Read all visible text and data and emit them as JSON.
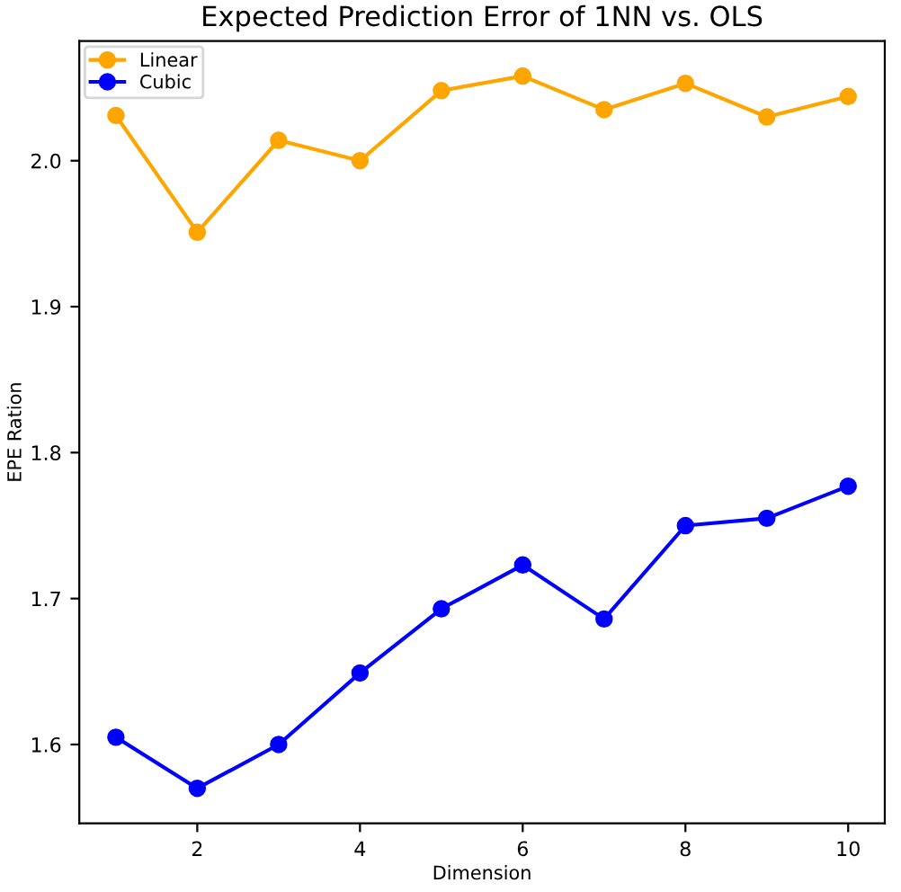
{
  "chart_data": {
    "type": "line",
    "title": "Expected Prediction Error of 1NN vs. OLS",
    "xlabel": "Dimension",
    "ylabel": "EPE Ration",
    "x": [
      1,
      2,
      3,
      4,
      5,
      6,
      7,
      8,
      9,
      10
    ],
    "series": [
      {
        "name": "Linear",
        "color": "#ffa500",
        "values": [
          2.031,
          1.951,
          2.014,
          2.0,
          2.048,
          2.058,
          2.035,
          2.053,
          2.03,
          2.044
        ]
      },
      {
        "name": "Cubic",
        "color": "#0000ff",
        "values": [
          1.605,
          1.57,
          1.6,
          1.649,
          1.693,
          1.723,
          1.686,
          1.75,
          1.755,
          1.777
        ]
      }
    ],
    "xlim": [
      0.55,
      10.45
    ],
    "ylim": [
      1.546,
      2.082
    ],
    "xticks": [
      2,
      4,
      6,
      8,
      10
    ],
    "yticks": [
      {
        "value": 1.6,
        "label": "1.6"
      },
      {
        "value": 1.7,
        "label": "1.7"
      },
      {
        "value": 1.8,
        "label": "1.8"
      },
      {
        "value": 1.9,
        "label": "1.9"
      },
      {
        "value": 2.0,
        "label": "2.0"
      }
    ],
    "marker": "circle",
    "line_style": "solid",
    "legend": "top left",
    "grid": false
  }
}
